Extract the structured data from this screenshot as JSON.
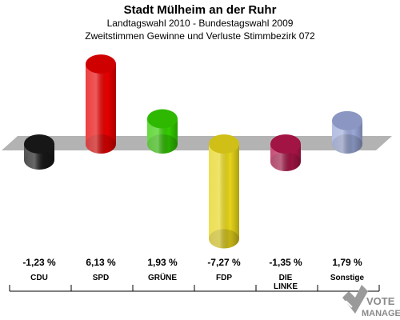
{
  "title": "Stadt Mülheim an der Ruhr",
  "subtitle1": "Landtagswahl 2010 - Bundestagswahl 2009",
  "subtitle2": "Zweitstimmen Gewinne und Verluste Stimmbezirk 072",
  "chart_data": {
    "type": "bar",
    "categories": [
      "CDU",
      "SPD",
      "GRÜNE",
      "FDP",
      "DIE LINKE",
      "Sonstige"
    ],
    "category_lines": [
      [
        "CDU"
      ],
      [
        "SPD"
      ],
      [
        "GRÜNE"
      ],
      [
        "FDP"
      ],
      [
        "DIE",
        "LINKE"
      ],
      [
        "Sonstige"
      ]
    ],
    "values": [
      -1.23,
      6.13,
      1.93,
      -7.27,
      -1.35,
      1.79
    ],
    "value_labels": [
      "-1,23 %",
      "6,13 %",
      "1,93 %",
      "-7,27 %",
      "-1,35 %",
      "1,79 %"
    ],
    "colors": [
      "#1a1a1a",
      "#e60000",
      "#33cc00",
      "#e6d41a",
      "#b3164a",
      "#9aa8d8"
    ],
    "ylim": [
      -7.27,
      6.13
    ],
    "legend": "none",
    "grid": false
  },
  "logo": {
    "line1": "VOTE",
    "line2": "MANAGER"
  }
}
